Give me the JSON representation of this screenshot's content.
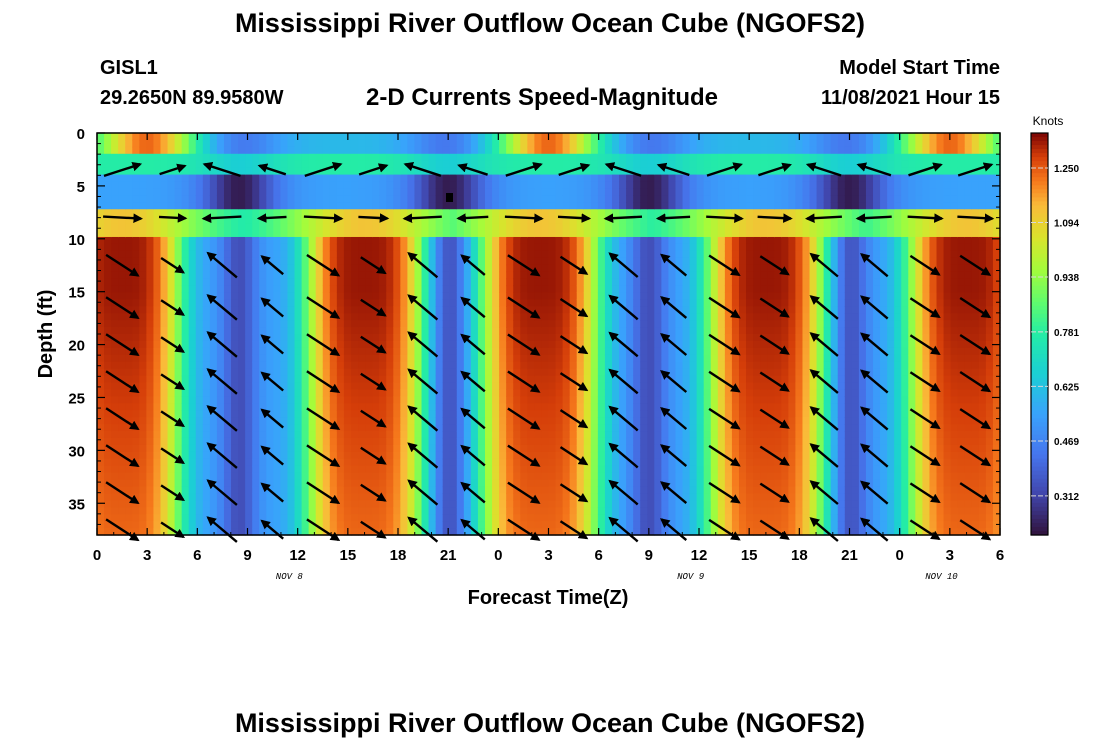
{
  "header": {
    "title": "Mississippi River Outflow Ocean Cube (NGOFS2)",
    "station_name": "GISL1",
    "station_coords": "29.2650N  89.9580W",
    "subtitle": "2-D Currents Speed-Magnitude",
    "model_start_label": "Model Start Time",
    "model_start_value": "11/08/2021 Hour 15"
  },
  "footer": {
    "title": "Mississippi River Outflow Ocean Cube (NGOFS2)"
  },
  "chart_data": {
    "type": "heatmap",
    "title": "2-D Currents Speed-Magnitude",
    "xlabel": "Forecast Time(Z)",
    "ylabel": "Depth (ft)",
    "x_unit": "hours since 11/08 00Z",
    "xlim": [
      0,
      54
    ],
    "ylim": [
      0,
      38
    ],
    "y_inverted": true,
    "x_tick_labels": [
      "0",
      "3",
      "6",
      "9",
      "12",
      "15",
      "18",
      "21",
      "0",
      "3",
      "6",
      "9",
      "12",
      "15",
      "18",
      "21",
      "0",
      "3",
      "6"
    ],
    "y_ticks": [
      0,
      5,
      10,
      15,
      20,
      25,
      30,
      35
    ],
    "date_labels": [
      {
        "text": "NOV 8",
        "x": 11.5
      },
      {
        "text": "NOV 9",
        "x": 35.5
      },
      {
        "text": "NOV 10",
        "x": 50.5
      }
    ],
    "colorbar": {
      "label": "Knots",
      "tick_labels": [
        "1.250",
        "1.094",
        "0.938",
        "0.781",
        "0.625",
        "0.469",
        "0.312"
      ],
      "tick_values": [
        1.25,
        1.094,
        0.938,
        0.781,
        0.625,
        0.469,
        0.312
      ],
      "range": [
        0.2,
        1.35
      ]
    },
    "peak_hours": [
      1.5,
      16,
      26.5,
      40,
      52
    ],
    "trough_hours": [
      8.5,
      21,
      33,
      45
    ],
    "surface_peak_hours": [
      3,
      27,
      51
    ],
    "arrow_depths": [
      3.5,
      8,
      12.5,
      16.5,
      20,
      23.5,
      27,
      30.5,
      34,
      37.5
    ],
    "grid": false,
    "legend": "colorbar-right"
  }
}
